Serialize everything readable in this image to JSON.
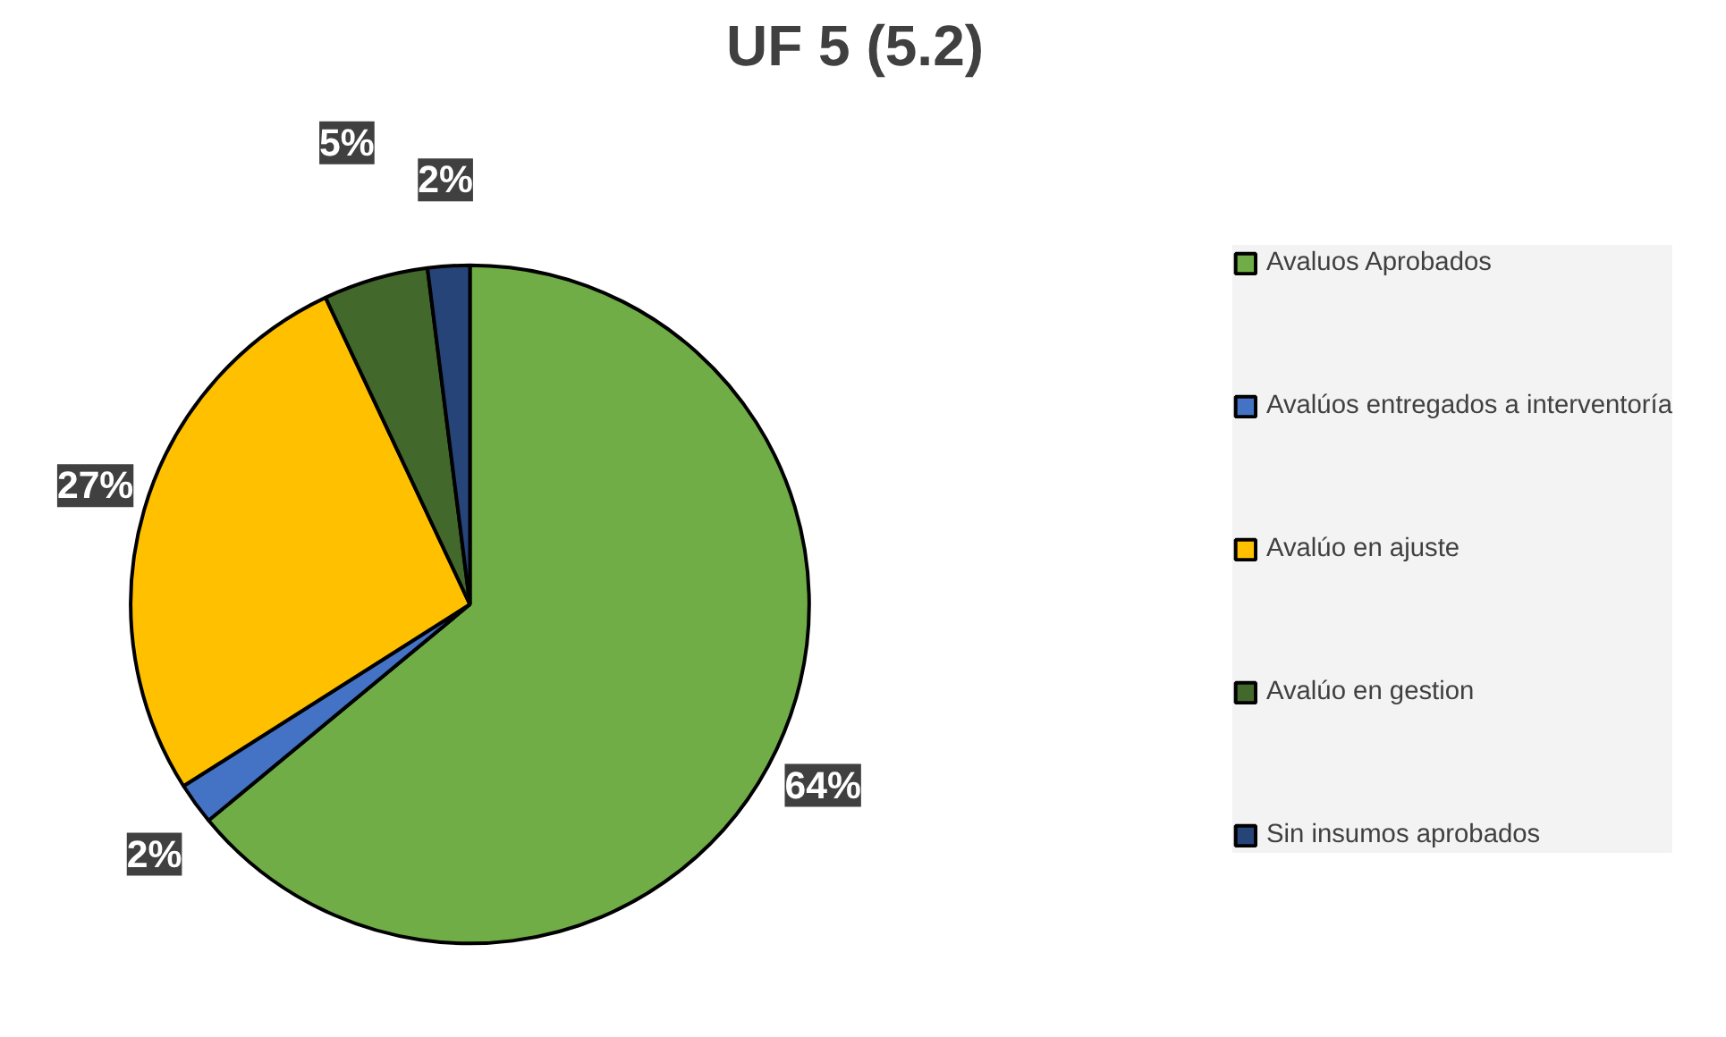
{
  "chart_data": {
    "type": "pie",
    "title": "UF 5 (5.2)",
    "categories": [
      "Avaluos Aprobados",
      "Avalúos entregados a interventoría",
      "Avalúo en ajuste",
      "Avalúo en gestion",
      "Sin insumos aprobados"
    ],
    "values": [
      64,
      2,
      27,
      5,
      2
    ],
    "colors": [
      "#70ad47",
      "#4472c4",
      "#ffc000",
      "#43682b",
      "#264478"
    ],
    "value_labels": [
      "64%",
      "2%",
      "27%",
      "5%",
      "2%"
    ],
    "legend": "right"
  }
}
